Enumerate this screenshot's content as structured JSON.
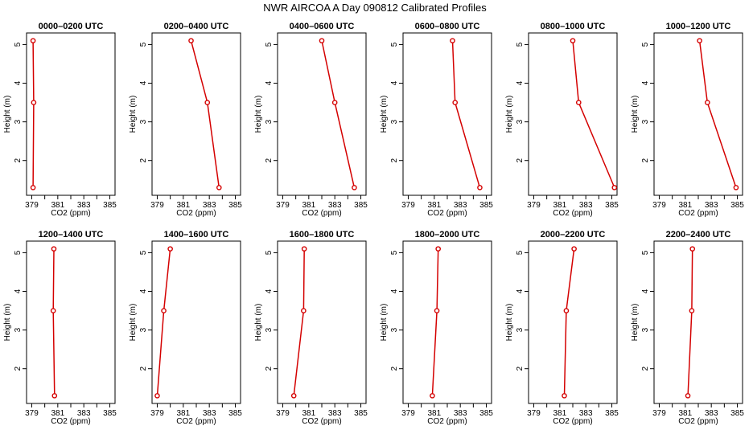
{
  "figure": {
    "title": "NWR AIRCOA A  Day 090812  Calibrated Profiles"
  },
  "style": {
    "line_color": "#d40000",
    "marker_color": "#d40000",
    "axis_color": "#000000"
  },
  "chart_data": [
    {
      "type": "line",
      "title": "0000–0200 UTC",
      "xlabel": "CO2 (ppm)",
      "ylabel": "Height (m)",
      "xlim": [
        378.6,
        385.4
      ],
      "ylim": [
        1.1,
        5.3
      ],
      "xticks": [
        379,
        381,
        383,
        385
      ],
      "yticks": [
        2,
        3,
        4,
        5
      ],
      "series": [
        {
          "x": [
            379.1,
            379.15,
            379.1
          ],
          "y": [
            1.3,
            3.5,
            5.1
          ]
        }
      ]
    },
    {
      "type": "line",
      "title": "0200–0400 UTC",
      "xlabel": "CO2 (ppm)",
      "ylabel": "Height (m)",
      "xlim": [
        378.6,
        385.4
      ],
      "ylim": [
        1.1,
        5.3
      ],
      "xticks": [
        379,
        381,
        383,
        385
      ],
      "yticks": [
        2,
        3,
        4,
        5
      ],
      "series": [
        {
          "x": [
            383.75,
            382.85,
            381.6
          ],
          "y": [
            1.3,
            3.5,
            5.1
          ]
        }
      ]
    },
    {
      "type": "line",
      "title": "0400–0600 UTC",
      "xlabel": "CO2 (ppm)",
      "ylabel": "Height (m)",
      "xlim": [
        378.6,
        385.4
      ],
      "ylim": [
        1.1,
        5.3
      ],
      "xticks": [
        379,
        381,
        383,
        385
      ],
      "yticks": [
        2,
        3,
        4,
        5
      ],
      "series": [
        {
          "x": [
            384.5,
            383.0,
            382.0
          ],
          "y": [
            1.3,
            3.5,
            5.1
          ]
        }
      ]
    },
    {
      "type": "line",
      "title": "0600–0800 UTC",
      "xlabel": "CO2 (ppm)",
      "ylabel": "Height (m)",
      "xlim": [
        378.6,
        385.4
      ],
      "ylim": [
        1.1,
        5.3
      ],
      "xticks": [
        379,
        381,
        383,
        385
      ],
      "yticks": [
        2,
        3,
        4,
        5
      ],
      "series": [
        {
          "x": [
            384.5,
            382.6,
            382.4
          ],
          "y": [
            1.3,
            3.5,
            5.1
          ]
        }
      ]
    },
    {
      "type": "line",
      "title": "0800–1000 UTC",
      "xlabel": "CO2 (ppm)",
      "ylabel": "Height (m)",
      "xlim": [
        378.6,
        385.4
      ],
      "ylim": [
        1.1,
        5.3
      ],
      "xticks": [
        379,
        381,
        383,
        385
      ],
      "yticks": [
        2,
        3,
        4,
        5
      ],
      "series": [
        {
          "x": [
            385.2,
            382.45,
            382.0
          ],
          "y": [
            1.3,
            3.5,
            5.1
          ]
        }
      ]
    },
    {
      "type": "line",
      "title": "1000–1200 UTC",
      "xlabel": "CO2 (ppm)",
      "ylabel": "Height (m)",
      "xlim": [
        378.6,
        385.4
      ],
      "ylim": [
        1.1,
        5.3
      ],
      "xticks": [
        379,
        381,
        383,
        385
      ],
      "yticks": [
        2,
        3,
        4,
        5
      ],
      "series": [
        {
          "x": [
            384.9,
            382.7,
            382.1
          ],
          "y": [
            1.3,
            3.5,
            5.1
          ]
        }
      ]
    },
    {
      "type": "line",
      "title": "1200–1400 UTC",
      "xlabel": "CO2 (ppm)",
      "ylabel": "Height (m)",
      "xlim": [
        378.6,
        385.4
      ],
      "ylim": [
        1.1,
        5.3
      ],
      "xticks": [
        379,
        381,
        383,
        385
      ],
      "yticks": [
        2,
        3,
        4,
        5
      ],
      "series": [
        {
          "x": [
            380.75,
            380.65,
            380.7
          ],
          "y": [
            1.3,
            3.5,
            5.1
          ]
        }
      ]
    },
    {
      "type": "line",
      "title": "1400–1600 UTC",
      "xlabel": "CO2 (ppm)",
      "ylabel": "Height (m)",
      "xlim": [
        378.6,
        385.4
      ],
      "ylim": [
        1.1,
        5.3
      ],
      "xticks": [
        379,
        381,
        383,
        385
      ],
      "yticks": [
        2,
        3,
        4,
        5
      ],
      "series": [
        {
          "x": [
            379.0,
            379.5,
            380.0
          ],
          "y": [
            1.3,
            3.5,
            5.1
          ]
        }
      ]
    },
    {
      "type": "line",
      "title": "1600–1800 UTC",
      "xlabel": "CO2 (ppm)",
      "ylabel": "Height (m)",
      "xlim": [
        378.6,
        385.4
      ],
      "ylim": [
        1.1,
        5.3
      ],
      "xticks": [
        379,
        381,
        383,
        385
      ],
      "yticks": [
        2,
        3,
        4,
        5
      ],
      "series": [
        {
          "x": [
            379.85,
            380.6,
            380.65
          ],
          "y": [
            1.3,
            3.5,
            5.1
          ]
        }
      ]
    },
    {
      "type": "line",
      "title": "1800–2000 UTC",
      "xlabel": "CO2 (ppm)",
      "ylabel": "Height (m)",
      "xlim": [
        378.6,
        385.4
      ],
      "ylim": [
        1.1,
        5.3
      ],
      "xticks": [
        379,
        381,
        383,
        385
      ],
      "yticks": [
        2,
        3,
        4,
        5
      ],
      "series": [
        {
          "x": [
            380.85,
            381.2,
            381.3
          ],
          "y": [
            1.3,
            3.5,
            5.1
          ]
        }
      ]
    },
    {
      "type": "line",
      "title": "2000–2200 UTC",
      "xlabel": "CO2 (ppm)",
      "ylabel": "Height (m)",
      "xlim": [
        378.6,
        385.4
      ],
      "ylim": [
        1.1,
        5.3
      ],
      "xticks": [
        379,
        381,
        383,
        385
      ],
      "yticks": [
        2,
        3,
        4,
        5
      ],
      "series": [
        {
          "x": [
            381.35,
            381.5,
            382.1
          ],
          "y": [
            1.3,
            3.5,
            5.1
          ]
        }
      ]
    },
    {
      "type": "line",
      "title": "2200–2400 UTC",
      "xlabel": "CO2 (ppm)",
      "ylabel": "Height (m)",
      "xlim": [
        378.6,
        385.4
      ],
      "ylim": [
        1.1,
        5.3
      ],
      "xticks": [
        379,
        381,
        383,
        385
      ],
      "yticks": [
        2,
        3,
        4,
        5
      ],
      "series": [
        {
          "x": [
            381.2,
            381.5,
            381.55
          ],
          "y": [
            1.3,
            3.5,
            5.1
          ]
        }
      ]
    }
  ]
}
